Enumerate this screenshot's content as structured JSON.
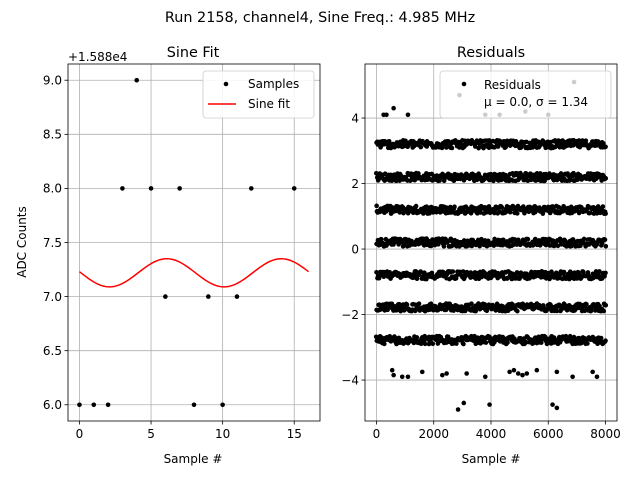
{
  "figure": {
    "suptitle": "Run 2158, channel4, Sine Freq.: 4.985 MHz"
  },
  "chart_data": [
    {
      "type": "scatter",
      "title": "Sine Fit",
      "xlabel": "Sample #",
      "ylabel": "ADC Counts",
      "offset_text": "+1.588e4",
      "xlim": [
        -0.8,
        16.8
      ],
      "ylim": [
        5.85,
        9.15
      ],
      "xticks": [
        0,
        5,
        10,
        15
      ],
      "xtick_labels": [
        "0",
        "5",
        "10",
        "15"
      ],
      "yticks": [
        6.0,
        6.5,
        7.0,
        7.5,
        8.0,
        8.5,
        9.0
      ],
      "ytick_labels": [
        "6.0",
        "6.5",
        "7.0",
        "7.5",
        "8.0",
        "8.5",
        "9.0"
      ],
      "grid": true,
      "legend_position": "top-right",
      "legend": [
        "Samples",
        "Sine fit"
      ],
      "series": [
        {
          "name": "Samples",
          "kind": "points",
          "color": "#000000",
          "x": [
            0,
            1,
            2,
            3,
            4,
            5,
            6,
            7,
            8,
            9,
            10,
            11,
            12,
            15
          ],
          "y": [
            6,
            6,
            6,
            8,
            9,
            8,
            7,
            8,
            6,
            7,
            6,
            7,
            8,
            8
          ]
        },
        {
          "name": "Sine fit",
          "kind": "line",
          "color": "#ff0000",
          "x_range": [
            0,
            16
          ],
          "offset": 7.22,
          "amplitude": 0.13,
          "period": 8.0,
          "peak_at": 6.1
        }
      ]
    },
    {
      "type": "scatter",
      "title": "Residuals",
      "xlabel": "Sample #",
      "ylabel": "",
      "xlim": [
        -400,
        8400
      ],
      "ylim": [
        -5.25,
        5.65
      ],
      "xticks": [
        0,
        2000,
        4000,
        6000,
        8000
      ],
      "xtick_labels": [
        "0",
        "2000",
        "4000",
        "6000",
        "8000"
      ],
      "yticks": [
        -4,
        -2,
        0,
        2,
        4
      ],
      "ytick_labels": [
        "−4",
        "−2",
        "0",
        "2",
        "4"
      ],
      "grid": true,
      "legend_position": "top-right",
      "legend": [
        "Residuals",
        "μ = 0.0, σ = 1.34"
      ],
      "series": [
        {
          "name": "Residuals",
          "kind": "points",
          "color": "#000000",
          "n_samples": 8000,
          "mean": 0.0,
          "sigma": 1.34,
          "dense_levels": [
            -2.78,
            -1.78,
            -0.8,
            0.2,
            1.2,
            2.2,
            3.2
          ],
          "dense_jitter": 0.12,
          "outliers": [
            {
              "x": 250,
              "y": 4.1
            },
            {
              "x": 350,
              "y": 4.1
            },
            {
              "x": 600,
              "y": 4.3
            },
            {
              "x": 1100,
              "y": 4.1
            },
            {
              "x": 2900,
              "y": 4.7
            },
            {
              "x": 6900,
              "y": 5.1
            },
            {
              "x": 3800,
              "y": 4.1
            },
            {
              "x": 4300,
              "y": 4.1
            },
            {
              "x": 5200,
              "y": 4.2
            },
            {
              "x": 6000,
              "y": 4.1
            },
            {
              "x": 550,
              "y": -3.7
            },
            {
              "x": 600,
              "y": -3.85
            },
            {
              "x": 900,
              "y": -3.9
            },
            {
              "x": 1100,
              "y": -3.9
            },
            {
              "x": 1600,
              "y": -3.75
            },
            {
              "x": 2300,
              "y": -3.85
            },
            {
              "x": 2450,
              "y": -3.8
            },
            {
              "x": 3150,
              "y": -3.8
            },
            {
              "x": 3800,
              "y": -3.9
            },
            {
              "x": 4650,
              "y": -3.75
            },
            {
              "x": 4800,
              "y": -3.7
            },
            {
              "x": 4950,
              "y": -3.8
            },
            {
              "x": 5100,
              "y": -3.85
            },
            {
              "x": 5250,
              "y": -3.8
            },
            {
              "x": 5600,
              "y": -3.7
            },
            {
              "x": 6300,
              "y": -3.75
            },
            {
              "x": 6850,
              "y": -3.9
            },
            {
              "x": 7550,
              "y": -3.75
            },
            {
              "x": 7700,
              "y": -3.9
            },
            {
              "x": 2850,
              "y": -4.9
            },
            {
              "x": 3050,
              "y": -4.7
            },
            {
              "x": 3950,
              "y": -4.75
            },
            {
              "x": 6150,
              "y": -4.75
            },
            {
              "x": 6300,
              "y": -4.85
            }
          ]
        }
      ]
    }
  ]
}
